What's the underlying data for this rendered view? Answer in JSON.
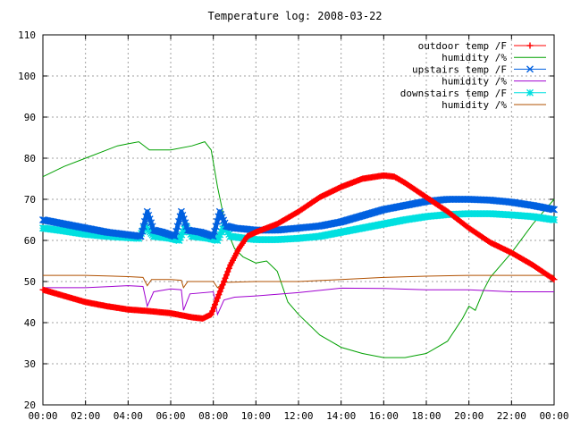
{
  "chart_data": {
    "type": "line",
    "title": "Temperature log: 2008-03-22",
    "xlabel": "",
    "ylabel": "",
    "xlim": [
      0,
      24
    ],
    "ylim": [
      20,
      110
    ],
    "grid": true,
    "legend_position": "top-right",
    "x_ticks": [
      "00:00",
      "02:00",
      "04:00",
      "06:00",
      "08:00",
      "10:00",
      "12:00",
      "14:00",
      "16:00",
      "18:00",
      "20:00",
      "22:00",
      "00:00"
    ],
    "y_ticks": [
      "20",
      "30",
      "40",
      "50",
      "60",
      "70",
      "80",
      "90",
      "100",
      "110"
    ],
    "series": [
      {
        "name": "outdoor temp /F",
        "color": "#ff0000",
        "marker": "plus",
        "points": [
          [
            0,
            48
          ],
          [
            1,
            46.5
          ],
          [
            2,
            45
          ],
          [
            3,
            44
          ],
          [
            4,
            43.2
          ],
          [
            5,
            42.8
          ],
          [
            6,
            42.3
          ],
          [
            7,
            41.3
          ],
          [
            7.5,
            41
          ],
          [
            7.9,
            42
          ],
          [
            8.2,
            46
          ],
          [
            8.5,
            50
          ],
          [
            8.8,
            54
          ],
          [
            9.2,
            58
          ],
          [
            9.6,
            61
          ],
          [
            10,
            62
          ],
          [
            11,
            64
          ],
          [
            12,
            67
          ],
          [
            13,
            70.5
          ],
          [
            14,
            73
          ],
          [
            15,
            75
          ],
          [
            16,
            75.8
          ],
          [
            16.5,
            75.5
          ],
          [
            17,
            74
          ],
          [
            18,
            70.5
          ],
          [
            19,
            67
          ],
          [
            20,
            63
          ],
          [
            21,
            59.5
          ],
          [
            22,
            57
          ],
          [
            23,
            54
          ],
          [
            24,
            50.5
          ]
        ]
      },
      {
        "name": "humidity /%",
        "color": "#00a000",
        "marker": "none",
        "points": [
          [
            0,
            75.5
          ],
          [
            1,
            78
          ],
          [
            2,
            80
          ],
          [
            3,
            82
          ],
          [
            3.5,
            83
          ],
          [
            4,
            83.5
          ],
          [
            4.5,
            84
          ],
          [
            5,
            82
          ],
          [
            6,
            82
          ],
          [
            7,
            83
          ],
          [
            7.6,
            84
          ],
          [
            7.9,
            82
          ],
          [
            8.2,
            73
          ],
          [
            8.6,
            63
          ],
          [
            9,
            58
          ],
          [
            9.4,
            56
          ],
          [
            10,
            54.5
          ],
          [
            10.5,
            55
          ],
          [
            11,
            52.5
          ],
          [
            11.5,
            45
          ],
          [
            12,
            42
          ],
          [
            13,
            37
          ],
          [
            14,
            34
          ],
          [
            15,
            32.5
          ],
          [
            16,
            31.5
          ],
          [
            17,
            31.5
          ],
          [
            17.5,
            32
          ],
          [
            18,
            32.5
          ],
          [
            19,
            35.5
          ],
          [
            19.7,
            41
          ],
          [
            20,
            44
          ],
          [
            20.3,
            43
          ],
          [
            20.7,
            48
          ],
          [
            21,
            51
          ],
          [
            22,
            57
          ],
          [
            23,
            64
          ],
          [
            24,
            70
          ]
        ]
      },
      {
        "name": "upstairs temp /F",
        "color": "#0060e0",
        "marker": "cross",
        "points": [
          [
            0,
            65
          ],
          [
            1,
            64
          ],
          [
            2,
            63
          ],
          [
            3,
            62
          ],
          [
            4.6,
            61
          ],
          [
            4.9,
            67
          ],
          [
            5.2,
            62.5
          ],
          [
            5.6,
            62
          ],
          [
            6.2,
            61
          ],
          [
            6.5,
            67
          ],
          [
            6.8,
            62.5
          ],
          [
            7.4,
            62
          ],
          [
            8,
            61
          ],
          [
            8.3,
            67
          ],
          [
            8.6,
            63.5
          ],
          [
            9,
            63
          ],
          [
            10,
            62.5
          ],
          [
            11,
            62.5
          ],
          [
            12,
            63
          ],
          [
            13,
            63.5
          ],
          [
            14,
            64.5
          ],
          [
            15,
            66
          ],
          [
            16,
            67.5
          ],
          [
            17,
            68.5
          ],
          [
            18,
            69.5
          ],
          [
            19,
            70
          ],
          [
            20,
            70
          ],
          [
            21,
            69.8
          ],
          [
            22,
            69.3
          ],
          [
            23,
            68.5
          ],
          [
            24,
            67.5
          ]
        ]
      },
      {
        "name": "humidity /%",
        "color": "#a000d0",
        "marker": "none",
        "points": [
          [
            0,
            48.5
          ],
          [
            2,
            48.5
          ],
          [
            4,
            49
          ],
          [
            4.7,
            48.8
          ],
          [
            4.9,
            44
          ],
          [
            5.2,
            47.5
          ],
          [
            6,
            48.2
          ],
          [
            6.5,
            48
          ],
          [
            6.6,
            43
          ],
          [
            6.9,
            47
          ],
          [
            8,
            47.5
          ],
          [
            8.2,
            42
          ],
          [
            8.5,
            45.5
          ],
          [
            9,
            46.2
          ],
          [
            10,
            46.5
          ],
          [
            12,
            47.3
          ],
          [
            14,
            48.4
          ],
          [
            16,
            48.3
          ],
          [
            18,
            48
          ],
          [
            20,
            48
          ],
          [
            22,
            47.5
          ],
          [
            24,
            47.5
          ]
        ]
      },
      {
        "name": "downstairs temp /F",
        "color": "#00e0e0",
        "marker": "star",
        "points": [
          [
            0,
            63
          ],
          [
            1,
            62.3
          ],
          [
            2,
            61.5
          ],
          [
            3,
            61
          ],
          [
            4.5,
            60.5
          ],
          [
            4.8,
            63.5
          ],
          [
            5.2,
            61
          ],
          [
            6,
            60.5
          ],
          [
            6.4,
            60
          ],
          [
            6.7,
            63.5
          ],
          [
            7,
            61
          ],
          [
            7.8,
            60.5
          ],
          [
            8.2,
            60
          ],
          [
            8.5,
            63.5
          ],
          [
            8.8,
            61
          ],
          [
            9.5,
            60.5
          ],
          [
            10,
            60.2
          ],
          [
            11,
            60.2
          ],
          [
            12,
            60.5
          ],
          [
            13,
            61
          ],
          [
            14,
            62
          ],
          [
            15,
            63
          ],
          [
            16,
            64
          ],
          [
            17,
            65
          ],
          [
            18,
            65.8
          ],
          [
            19,
            66.3
          ],
          [
            20,
            66.5
          ],
          [
            21,
            66.5
          ],
          [
            22,
            66.2
          ],
          [
            23,
            65.8
          ],
          [
            24,
            65
          ]
        ]
      },
      {
        "name": "humidity /%",
        "color": "#b05000",
        "marker": "none",
        "points": [
          [
            0,
            51.5
          ],
          [
            2,
            51.5
          ],
          [
            4,
            51.2
          ],
          [
            4.7,
            51
          ],
          [
            4.9,
            49
          ],
          [
            5.1,
            50.5
          ],
          [
            6,
            50.5
          ],
          [
            6.5,
            50.3
          ],
          [
            6.6,
            48.5
          ],
          [
            6.8,
            50
          ],
          [
            8,
            50
          ],
          [
            8.2,
            48.5
          ],
          [
            8.5,
            49.8
          ],
          [
            10,
            50
          ],
          [
            12,
            50
          ],
          [
            14,
            50.5
          ],
          [
            16,
            51
          ],
          [
            18,
            51.3
          ],
          [
            20,
            51.5
          ],
          [
            22,
            51.5
          ],
          [
            24,
            51.5
          ]
        ]
      }
    ]
  }
}
